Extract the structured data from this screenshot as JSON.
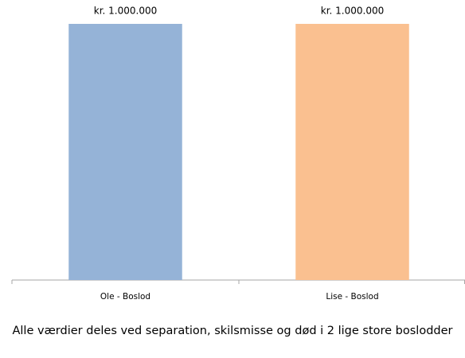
{
  "chart_data": {
    "type": "bar",
    "categories": [
      "Ole - Boslod",
      "Lise - Boslod"
    ],
    "values": [
      1000000,
      1000000
    ],
    "value_labels": [
      "kr. 1.000.000",
      "kr. 1.000.000"
    ],
    "colors": [
      "#95b3d7",
      "#fac090"
    ],
    "caption": "Alle værdier deles ved separation, skilsmisse og død i 2 lige store boslodder"
  }
}
